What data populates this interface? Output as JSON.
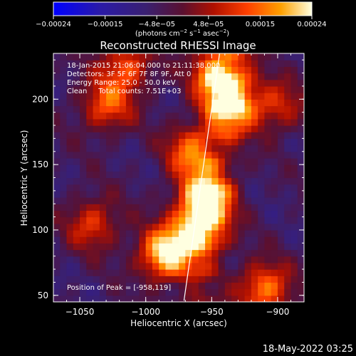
{
  "chart_data": {
    "type": "heatmap",
    "title": "Reconstructed RHESSI Image",
    "xlabel": "Heliocentric X (arcsec)",
    "ylabel": "Heliocentric Y (arcsec)",
    "xlim": [
      -1070,
      -880
    ],
    "ylim": [
      45,
      235
    ],
    "x_ticks": [
      -1050,
      -1000,
      -950,
      -900
    ],
    "x_tick_labels": [
      "−1050",
      "−1000",
      "−950",
      "−900"
    ],
    "y_ticks": [
      50,
      100,
      150,
      200
    ],
    "y_tick_labels": [
      "50",
      "100",
      "150",
      "200"
    ],
    "colorbar": {
      "range": [
        -0.00024,
        0.00024
      ],
      "tick_labels": [
        "−0.00024",
        "−0.00015",
        "−4.8e−05",
        "4.8e−05",
        "0.00015",
        "0.00024"
      ],
      "unit_line_1": "(photons cm",
      "unit_line_exp_1": "−2",
      "unit_line_2": " s",
      "unit_line_exp_2": "−1",
      "unit_line_3": " asec",
      "unit_line_exp_3": "−2",
      "unit_line_4": ")"
    },
    "info_lines": [
      "18-Jan-2015 21:06:04.000 to 21:11:38.000",
      "Detectors: 3F 5F 6F 7F 8F 9F, Att 0",
      "Energy Range: 25.0 - 50.0 keV",
      "Clean     Total counts: 7.51E+03"
    ],
    "peak_text": "Position of Peak = [-958,119]",
    "peak": [
      -958,
      119
    ],
    "limb_line": [
      [
        -971,
        46
      ],
      [
        -944,
        235
      ]
    ],
    "emission_sources": [
      {
        "x": -985,
        "y": 82,
        "intensity": 0.00024
      },
      {
        "x": -955,
        "y": 125,
        "intensity": 0.00022
      },
      {
        "x": -960,
        "y": 100,
        "intensity": 0.00018
      },
      {
        "x": -935,
        "y": 195,
        "intensity": 0.0002
      },
      {
        "x": -945,
        "y": 220,
        "intensity": 0.00019
      },
      {
        "x": -965,
        "y": 160,
        "intensity": 0.00014
      },
      {
        "x": -1030,
        "y": 195,
        "intensity": 0.00012
      },
      {
        "x": -1015,
        "y": 225,
        "intensity": 0.00012
      },
      {
        "x": -1040,
        "y": 105,
        "intensity": 0.0001
      },
      {
        "x": -910,
        "y": 55,
        "intensity": 0.00016
      },
      {
        "x": -900,
        "y": 195,
        "intensity": 8e-05
      }
    ],
    "grid": false
  },
  "footer": {
    "date": "18-May-2022 03:25"
  }
}
